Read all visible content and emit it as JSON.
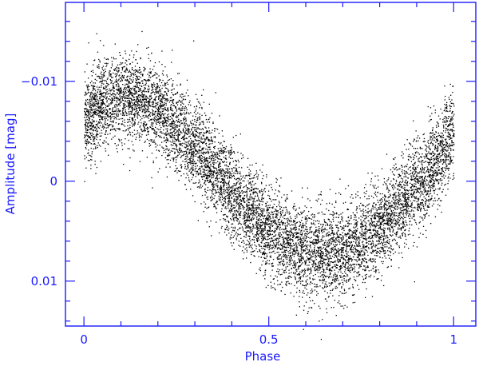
{
  "chart_data": {
    "type": "scatter",
    "title": "",
    "xlabel": "Phase",
    "ylabel": "Amplitude [mag]",
    "xlim": [
      -0.05,
      1.06
    ],
    "ylim": [
      0.0145,
      -0.0179
    ],
    "y_axis_inverted": true,
    "grid": false,
    "x_ticks": [
      {
        "value": 0,
        "label": "0"
      },
      {
        "value": 0.5,
        "label": "0.5"
      },
      {
        "value": 1,
        "label": "1"
      }
    ],
    "y_ticks": [
      {
        "value": -0.01,
        "label": "−0.01"
      },
      {
        "value": 0,
        "label": "0"
      },
      {
        "value": 0.01,
        "label": "0.01"
      }
    ],
    "series": [
      {
        "color": "#000000",
        "marker": "dot",
        "points_note_curve": [
          [
            0.0,
            -0.006
          ],
          [
            0.05,
            -0.008
          ],
          [
            0.1,
            -0.0085
          ],
          [
            0.15,
            -0.0082
          ],
          [
            0.2,
            -0.007
          ],
          [
            0.25,
            -0.0055
          ],
          [
            0.3,
            -0.0035
          ],
          [
            0.35,
            -0.0015
          ],
          [
            0.4,
            0.001
          ],
          [
            0.45,
            0.003
          ],
          [
            0.5,
            0.005
          ],
          [
            0.55,
            0.006
          ],
          [
            0.6,
            0.007
          ],
          [
            0.65,
            0.0075
          ],
          [
            0.7,
            0.007
          ],
          [
            0.75,
            0.006
          ],
          [
            0.8,
            0.0045
          ],
          [
            0.85,
            0.0025
          ],
          [
            0.9,
            0.0005
          ],
          [
            0.95,
            -0.002
          ],
          [
            1.0,
            -0.005
          ]
        ],
        "scatter_mag": 0.0022
      }
    ],
    "axis_color": "#1a1aff"
  }
}
